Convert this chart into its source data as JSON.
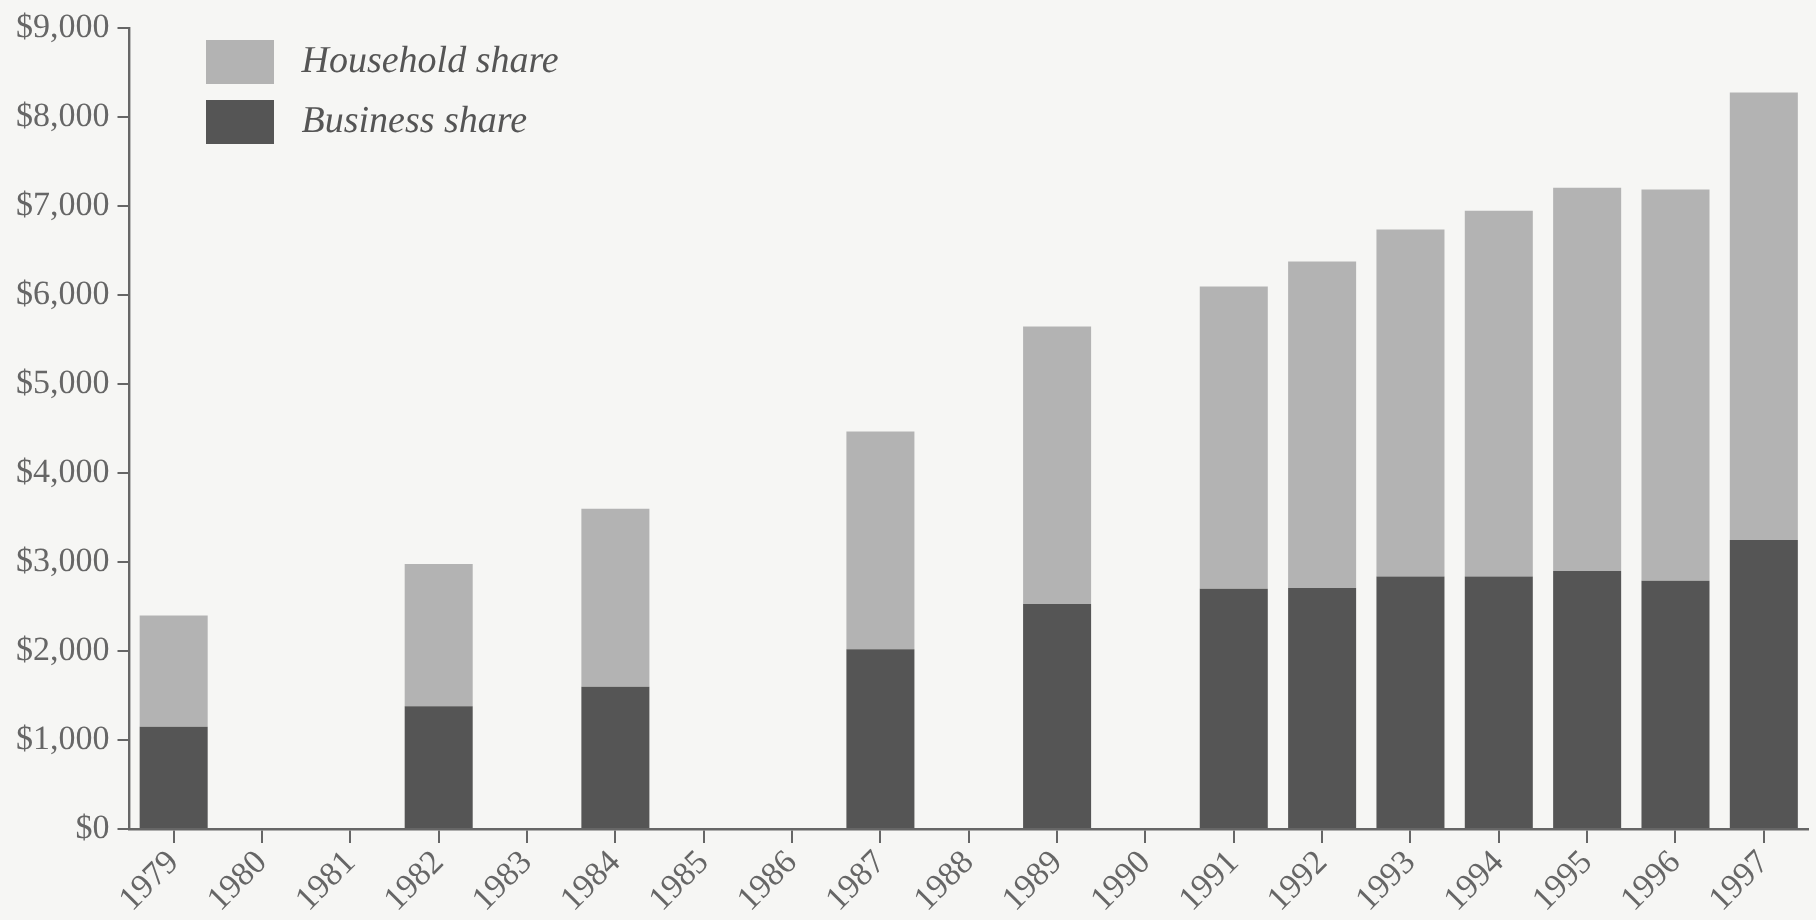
{
  "chart_data": {
    "type": "bar",
    "stacked": true,
    "categories": [
      "1979",
      "1980",
      "1981",
      "1982",
      "1983",
      "1984",
      "1985",
      "1986",
      "1987",
      "1988",
      "1989",
      "1990",
      "1991",
      "1992",
      "1993",
      "1994",
      "1995",
      "1996",
      "1997"
    ],
    "series": [
      {
        "name": "Business share",
        "color": "#555555",
        "values": [
          1150,
          null,
          null,
          1380,
          null,
          1600,
          null,
          null,
          2020,
          null,
          2530,
          null,
          2700,
          2710,
          2840,
          2840,
          2900,
          2790,
          3250
        ]
      },
      {
        "name": "Household share",
        "color": "#b3b3b3",
        "values": [
          1250,
          null,
          null,
          1600,
          null,
          2000,
          null,
          null,
          2450,
          null,
          3120,
          null,
          3400,
          3670,
          3900,
          4110,
          4310,
          4400,
          5030
        ]
      }
    ],
    "ylim": [
      0,
      9000
    ],
    "yticks": [
      {
        "value": 0,
        "label": "$0"
      },
      {
        "value": 1000,
        "label": "$1,000"
      },
      {
        "value": 2000,
        "label": "$2,000"
      },
      {
        "value": 3000,
        "label": "$3,000"
      },
      {
        "value": 4000,
        "label": "$4,000"
      },
      {
        "value": 5000,
        "label": "$5,000"
      },
      {
        "value": 6000,
        "label": "$6,000"
      },
      {
        "value": 7000,
        "label": "$7,000"
      },
      {
        "value": 8000,
        "label": "$8,000"
      },
      {
        "value": 9000,
        "label": "$9,000"
      }
    ],
    "grid": false,
    "legend": "top left"
  }
}
